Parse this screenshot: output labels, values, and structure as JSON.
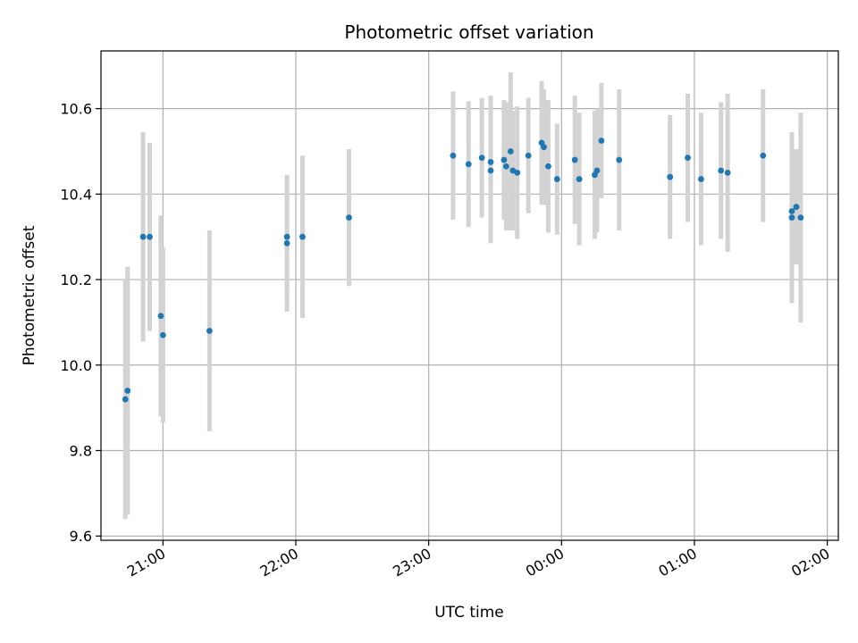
{
  "chart_data": {
    "type": "scatter",
    "title": "Photometric offset variation",
    "xlabel": "UTC time",
    "ylabel": "Photometric offset",
    "x_unit": "UTC time (HH:MM)",
    "xlim": [
      "20:32",
      "02:05"
    ],
    "ylim": [
      9.59,
      10.735
    ],
    "x_ticks": [
      "21:00",
      "22:00",
      "23:00",
      "00:00",
      "01:00",
      "02:00"
    ],
    "y_ticks": [
      9.6,
      9.8,
      10.0,
      10.2,
      10.4,
      10.6
    ],
    "grid": true,
    "colors": {
      "marker": "#1f77b4",
      "errorbar": "#d3d3d3",
      "grid": "#b0b0b0",
      "axes": "#000000"
    },
    "points": [
      {
        "x": "20:43",
        "y": 9.92,
        "err": 0.28
      },
      {
        "x": "20:44",
        "y": 9.94,
        "err": 0.29
      },
      {
        "x": "20:51",
        "y": 10.3,
        "err": 0.245
      },
      {
        "x": "20:54",
        "y": 10.3,
        "err": 0.22
      },
      {
        "x": "20:59",
        "y": 10.115,
        "err": 0.235
      },
      {
        "x": "21:00",
        "y": 10.07,
        "err": 0.205
      },
      {
        "x": "21:21",
        "y": 10.08,
        "err": 0.235
      },
      {
        "x": "21:56",
        "y": 10.3,
        "err": 0.14
      },
      {
        "x": "21:56",
        "y": 10.285,
        "err": 0.16
      },
      {
        "x": "22:03",
        "y": 10.3,
        "err": 0.19
      },
      {
        "x": "22:24",
        "y": 10.345,
        "err": 0.16
      },
      {
        "x": "23:11",
        "y": 10.49,
        "err": 0.15
      },
      {
        "x": "23:18",
        "y": 10.47,
        "err": 0.147
      },
      {
        "x": "23:24",
        "y": 10.485,
        "err": 0.14
      },
      {
        "x": "23:28",
        "y": 10.475,
        "err": 0.155
      },
      {
        "x": "23:28",
        "y": 10.455,
        "err": 0.17
      },
      {
        "x": "23:34",
        "y": 10.48,
        "err": 0.14
      },
      {
        "x": "23:35",
        "y": 10.465,
        "err": 0.15
      },
      {
        "x": "23:37",
        "y": 10.5,
        "err": 0.185
      },
      {
        "x": "23:38",
        "y": 10.455,
        "err": 0.14
      },
      {
        "x": "23:40",
        "y": 10.45,
        "err": 0.155
      },
      {
        "x": "23:45",
        "y": 10.49,
        "err": 0.135
      },
      {
        "x": "23:51",
        "y": 10.52,
        "err": 0.145
      },
      {
        "x": "23:52",
        "y": 10.51,
        "err": 0.135
      },
      {
        "x": "23:54",
        "y": 10.465,
        "err": 0.155
      },
      {
        "x": "23:58",
        "y": 10.435,
        "err": 0.13
      },
      {
        "x": "00:06",
        "y": 10.48,
        "err": 0.15
      },
      {
        "x": "00:08",
        "y": 10.435,
        "err": 0.155
      },
      {
        "x": "00:15",
        "y": 10.445,
        "err": 0.15
      },
      {
        "x": "00:16",
        "y": 10.455,
        "err": 0.145
      },
      {
        "x": "00:18",
        "y": 10.525,
        "err": 0.135
      },
      {
        "x": "00:26",
        "y": 10.48,
        "err": 0.165
      },
      {
        "x": "00:49",
        "y": 10.44,
        "err": 0.145
      },
      {
        "x": "00:57",
        "y": 10.485,
        "err": 0.15
      },
      {
        "x": "01:03",
        "y": 10.435,
        "err": 0.155
      },
      {
        "x": "01:12",
        "y": 10.455,
        "err": 0.16
      },
      {
        "x": "01:15",
        "y": 10.45,
        "err": 0.185
      },
      {
        "x": "01:31",
        "y": 10.49,
        "err": 0.155
      },
      {
        "x": "01:44",
        "y": 10.345,
        "err": 0.2
      },
      {
        "x": "01:44",
        "y": 10.36,
        "err": 0.185
      },
      {
        "x": "01:46",
        "y": 10.37,
        "err": 0.135
      },
      {
        "x": "01:48",
        "y": 10.345,
        "err": 0.245
      }
    ]
  }
}
